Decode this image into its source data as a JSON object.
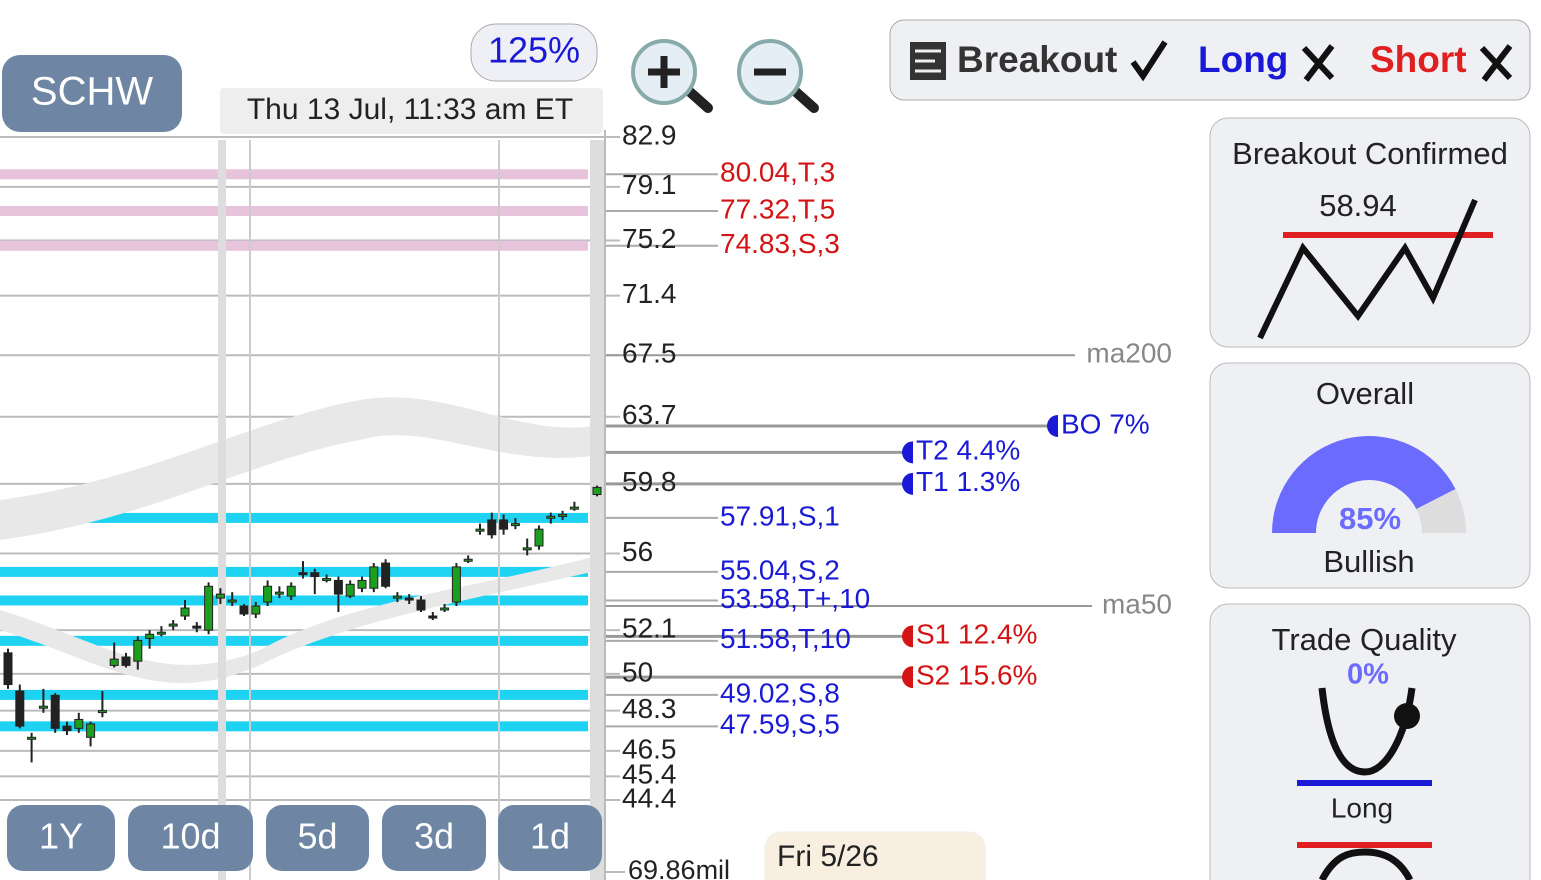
{
  "header": {
    "ticker": "SCHW",
    "zoom": "125%",
    "timestamp": "Thu 13 Jul, 11:33 am ET"
  },
  "chart_data": {
    "type": "candlestick",
    "scale": "log",
    "ylim": [
      44.4,
      82.9
    ],
    "yticks": [
      82.9,
      79.1,
      75.2,
      71.4,
      67.5,
      63.7,
      59.8,
      56,
      52.1,
      50,
      48.3,
      46.5,
      45.4,
      44.4
    ],
    "up_color": "#1e9e1e",
    "down_color": "#222",
    "candles": {
      "open": [
        51.0,
        49.2,
        47.1,
        48.5,
        49.0,
        47.6,
        47.5,
        47.1,
        48.3,
        50.4,
        50.8,
        50.6,
        51.7,
        52.0,
        52.4,
        52.8,
        52.3,
        52.1,
        53.7,
        53.6,
        53.3,
        52.9,
        53.5,
        54.0,
        53.8,
        55.0,
        55.0,
        54.7,
        54.6,
        53.8,
        54.2,
        54.2,
        55.5,
        53.8,
        53.7,
        53.6,
        52.8,
        53.2,
        53.5,
        55.7,
        57.3,
        57.8,
        57.8,
        57.6,
        56.3,
        56.4,
        57.9,
        58.1,
        58.5,
        59.2
      ],
      "high": [
        51.2,
        49.5,
        47.3,
        49.3,
        49.1,
        47.8,
        48.2,
        47.8,
        49.2,
        51.5,
        51.0,
        51.8,
        52.1,
        52.3,
        52.6,
        53.6,
        52.5,
        54.5,
        54.2,
        54.0,
        53.4,
        53.5,
        54.6,
        54.3,
        54.5,
        55.6,
        55.2,
        54.9,
        54.8,
        54.6,
        54.8,
        55.5,
        55.7,
        54.0,
        53.9,
        53.8,
        53.0,
        53.4,
        55.5,
        55.9,
        57.6,
        58.2,
        58.1,
        57.9,
        56.8,
        57.5,
        58.2,
        58.3,
        58.8,
        59.7
      ],
      "low": [
        49.3,
        47.5,
        46.0,
        48.2,
        47.3,
        47.2,
        47.3,
        46.7,
        48.0,
        50.3,
        50.3,
        50.2,
        51.2,
        51.8,
        52.1,
        52.6,
        52.0,
        51.9,
        53.4,
        53.3,
        52.8,
        52.7,
        53.3,
        53.7,
        53.6,
        54.7,
        53.9,
        54.5,
        53.0,
        53.7,
        54.0,
        54.0,
        54.2,
        53.5,
        53.4,
        53.0,
        52.6,
        53.0,
        53.3,
        55.5,
        57.0,
        56.8,
        57.0,
        57.3,
        55.9,
        56.2,
        57.6,
        57.8,
        58.3,
        59.1
      ],
      "close": [
        49.5,
        47.6,
        47.1,
        48.5,
        47.5,
        47.4,
        47.9,
        47.7,
        48.3,
        50.7,
        50.4,
        51.6,
        51.9,
        52.0,
        52.4,
        53.2,
        52.2,
        54.3,
        53.9,
        53.6,
        52.9,
        53.3,
        54.3,
        54.0,
        54.3,
        54.9,
        54.8,
        54.7,
        53.9,
        54.4,
        54.6,
        55.3,
        54.3,
        53.8,
        53.6,
        53.1,
        52.7,
        53.2,
        55.3,
        55.7,
        57.3,
        57.0,
        57.3,
        57.6,
        56.3,
        57.3,
        58.0,
        58.1,
        58.5,
        59.6
      ]
    },
    "levels": [
      {
        "value": 80.04,
        "label": "80.04,T,3",
        "zone": "resistance"
      },
      {
        "value": 77.32,
        "label": "77.32,T,5",
        "zone": "resistance"
      },
      {
        "value": 74.83,
        "label": "74.83,S,3",
        "zone": "resistance"
      },
      {
        "value": 57.91,
        "label": "57.91,S,1",
        "zone": "support"
      },
      {
        "value": 55.04,
        "label": "55.04,S,2",
        "zone": "support"
      },
      {
        "value": 53.58,
        "label": "53.58,T+,10",
        "zone": "support"
      },
      {
        "value": 51.58,
        "label": "51.58,T,10",
        "zone": "support"
      },
      {
        "value": 49.02,
        "label": "49.02,S,8",
        "zone": "support"
      },
      {
        "value": 47.59,
        "label": "47.59,S,5",
        "zone": "support"
      }
    ],
    "lines": [
      {
        "name": "ma200",
        "value": 67.5
      },
      {
        "name": "ma50",
        "value": 53.3
      }
    ],
    "targets": [
      {
        "label": "BO 7%",
        "value": 63.15,
        "color": "#1a1ad6"
      },
      {
        "label": "T2 4.4%",
        "value": 61.6,
        "color": "#1a1ad6"
      },
      {
        "label": "T1 1.3%",
        "value": 59.8,
        "color": "#1a1ad6"
      },
      {
        "label": "S1 12.4%",
        "value": 51.8,
        "color": "#d41414"
      },
      {
        "label": "S2 15.6%",
        "value": 49.85,
        "color": "#d41414"
      }
    ],
    "volume_label": "69.86mil",
    "hover_date": "Fri 5/26"
  },
  "ranges": [
    "1Y",
    "10d",
    "5d",
    "3d",
    "1d"
  ],
  "toolbar": {
    "breakout": "Breakout",
    "long": "Long",
    "short": "Short"
  },
  "cards": {
    "breakout": {
      "title": "Breakout Confirmed",
      "price": "58.94"
    },
    "overall": {
      "title": "Overall",
      "value": 85,
      "value_label": "85%",
      "verdict": "Bullish"
    },
    "quality": {
      "title": "Trade Quality",
      "value": 0,
      "value_label": "0%",
      "side": "Long"
    }
  }
}
